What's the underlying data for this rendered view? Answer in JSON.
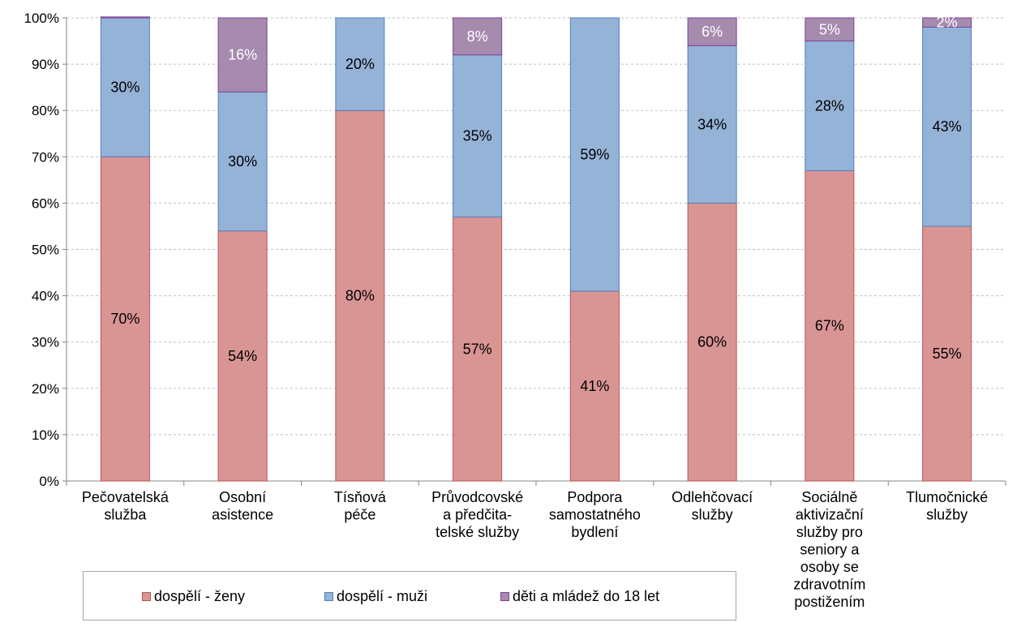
{
  "chart_data": {
    "type": "bar",
    "stacked": true,
    "percent": true,
    "categories": [
      "Pečovatelská služba",
      "Osobní asistence",
      "Tísňová péče",
      "Průvodcovské a předčita-telské služby",
      "Podpora samostatného bydlení",
      "Odlehčovací služby",
      "Sociálně aktivizační služby pro seniory a osoby se zdravotním postižením",
      "Tlumočnické služby"
    ],
    "category_lines": [
      [
        "Pečovatelská",
        "služba"
      ],
      [
        "Osobní",
        "asistence"
      ],
      [
        "Tísňová",
        "péče"
      ],
      [
        "Průvodcovské",
        "a předčita-",
        "telské služby"
      ],
      [
        "Podpora",
        "samostatného",
        "bydlení"
      ],
      [
        "Odlehčovací",
        "služby"
      ],
      [
        "Sociálně",
        "aktivizační",
        "služby pro",
        "seniory a",
        "osoby se",
        "zdravotním",
        "postižením"
      ],
      [
        "Tlumočnické",
        "služby"
      ]
    ],
    "series": [
      {
        "name": "dospělí - ženy",
        "color": "#d99594",
        "values": [
          70,
          54,
          80,
          57,
          41,
          60,
          67,
          55
        ],
        "labels": [
          "70%",
          "54%",
          "80%",
          "57%",
          "41%",
          "60%",
          "67%",
          "55%"
        ]
      },
      {
        "name": "dospělí - muži",
        "color": "#95b3d7",
        "values": [
          30,
          30,
          20,
          35,
          59,
          34,
          28,
          43
        ],
        "labels": [
          "30%",
          "30%",
          "20%",
          "35%",
          "59%",
          "34%",
          "28%",
          "43%"
        ]
      },
      {
        "name": "děti a mládež do 18 let",
        "color": "#a68bae",
        "values": [
          0.2,
          16,
          0,
          8,
          0,
          6,
          5,
          2
        ],
        "labels": [
          "",
          "16%",
          "",
          "8%",
          "",
          "6%",
          "5%",
          "2%"
        ]
      }
    ],
    "ylim": [
      0,
      100
    ],
    "yticks": [
      "0%",
      "10%",
      "20%",
      "30%",
      "40%",
      "50%",
      "60%",
      "70%",
      "80%",
      "90%",
      "100%"
    ],
    "grid": true,
    "legend_position": "bottom"
  }
}
